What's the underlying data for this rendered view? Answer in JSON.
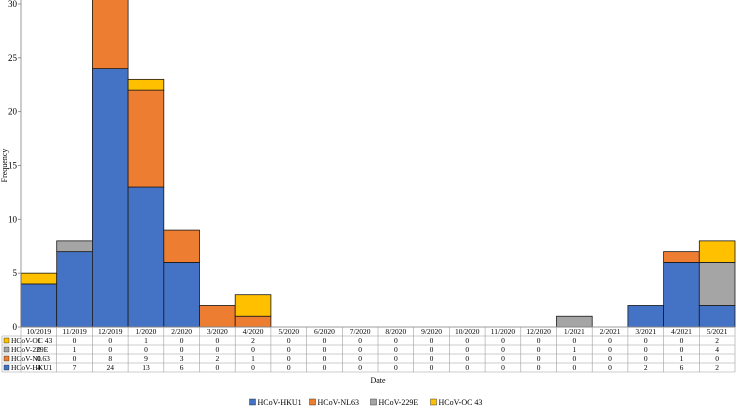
{
  "chart_data": {
    "type": "bar",
    "stacked": true,
    "categories": [
      "10/2019",
      "11/2019",
      "12/2019",
      "1/2020",
      "2/2020",
      "3/2020",
      "4/2020",
      "5/2020",
      "6/2020",
      "7/2020",
      "8/2020",
      "9/2020",
      "10/2020",
      "11/2020",
      "12/2020",
      "1/2021",
      "2/2021",
      "3/2021",
      "4/2021",
      "5/2021"
    ],
    "series": [
      {
        "name": "HCoV-HKU1",
        "color": "#4472c4",
        "values": [
          4,
          7,
          24,
          13,
          6,
          0,
          0,
          0,
          0,
          0,
          0,
          0,
          0,
          0,
          0,
          0,
          0,
          2,
          6,
          2
        ]
      },
      {
        "name": "HCoV-NL63",
        "color": "#ed7d31",
        "values": [
          0,
          0,
          8,
          9,
          3,
          2,
          1,
          0,
          0,
          0,
          0,
          0,
          0,
          0,
          0,
          0,
          0,
          0,
          1,
          0
        ]
      },
      {
        "name": "HCoV-229E",
        "color": "#a5a5a5",
        "values": [
          0,
          1,
          0,
          0,
          0,
          0,
          0,
          0,
          0,
          0,
          0,
          0,
          0,
          0,
          0,
          1,
          0,
          0,
          0,
          4
        ]
      },
      {
        "name": "HCoV-OC 43",
        "color": "#ffc000",
        "values": [
          1,
          0,
          0,
          1,
          0,
          0,
          2,
          0,
          0,
          0,
          0,
          0,
          0,
          0,
          0,
          0,
          0,
          0,
          0,
          2
        ]
      }
    ],
    "table_rows_order": [
      "HCoV-OC 43",
      "HCoV-229E",
      "HCoV-NL63",
      "HCoV-HKU1"
    ],
    "xlabel": "Date",
    "ylabel": "Frequency",
    "ylim": [
      0,
      30
    ],
    "yticks": [
      0,
      5,
      10,
      15,
      20,
      25,
      30
    ],
    "grid": false,
    "legend": "bottom",
    "data_table": true
  }
}
